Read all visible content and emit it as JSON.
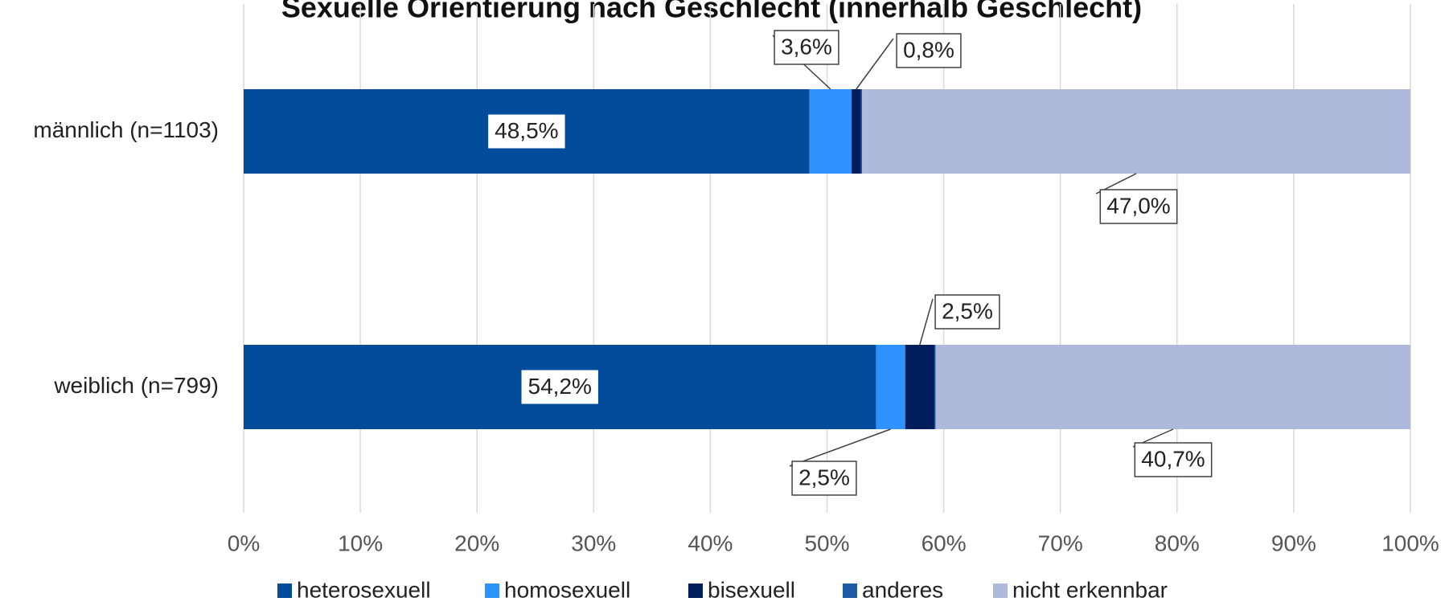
{
  "chart_data": {
    "type": "stacked_barh",
    "title": "Sexuelle Orientierung nach Geschlecht (innerhalb Geschlecht)",
    "categories": [
      "männlich (n=1103)",
      "weiblich (n=799)"
    ],
    "series": [
      {
        "name": "heterosexuell",
        "color": "#034b9b",
        "values": [
          48.5,
          54.2
        ],
        "value_labels": [
          "48,5%",
          "54,2%"
        ]
      },
      {
        "name": "homosexuell",
        "color": "#2e92ff",
        "values": [
          3.6,
          2.5
        ],
        "value_labels": [
          "3,6%",
          "2,5%"
        ]
      },
      {
        "name": "bisexuell",
        "color": "#011e5c",
        "values": [
          0.8,
          2.5
        ],
        "value_labels": [
          "0,8%",
          "2,5%"
        ]
      },
      {
        "name": "anderes",
        "color": "#1f5aa6",
        "values": [
          0.1,
          0.1
        ],
        "value_labels": [
          null,
          null
        ]
      },
      {
        "name": "nicht erkennbar",
        "color": "#aeb9dc",
        "values": [
          47.0,
          40.7
        ],
        "value_labels": [
          "47,0%",
          "40,7%"
        ]
      }
    ],
    "xlim": [
      0,
      100
    ],
    "xticks": [
      {
        "value": 0,
        "label": "0%"
      },
      {
        "value": 10,
        "label": "10%"
      },
      {
        "value": 20,
        "label": "20%"
      },
      {
        "value": 30,
        "label": "30%"
      },
      {
        "value": 40,
        "label": "40%"
      },
      {
        "value": 50,
        "label": "50%"
      },
      {
        "value": 60,
        "label": "60%"
      },
      {
        "value": 70,
        "label": "70%"
      },
      {
        "value": 80,
        "label": "80%"
      },
      {
        "value": 90,
        "label": "90%"
      },
      {
        "value": 100,
        "label": "100%"
      }
    ],
    "grid": true,
    "legend": "bottom"
  }
}
